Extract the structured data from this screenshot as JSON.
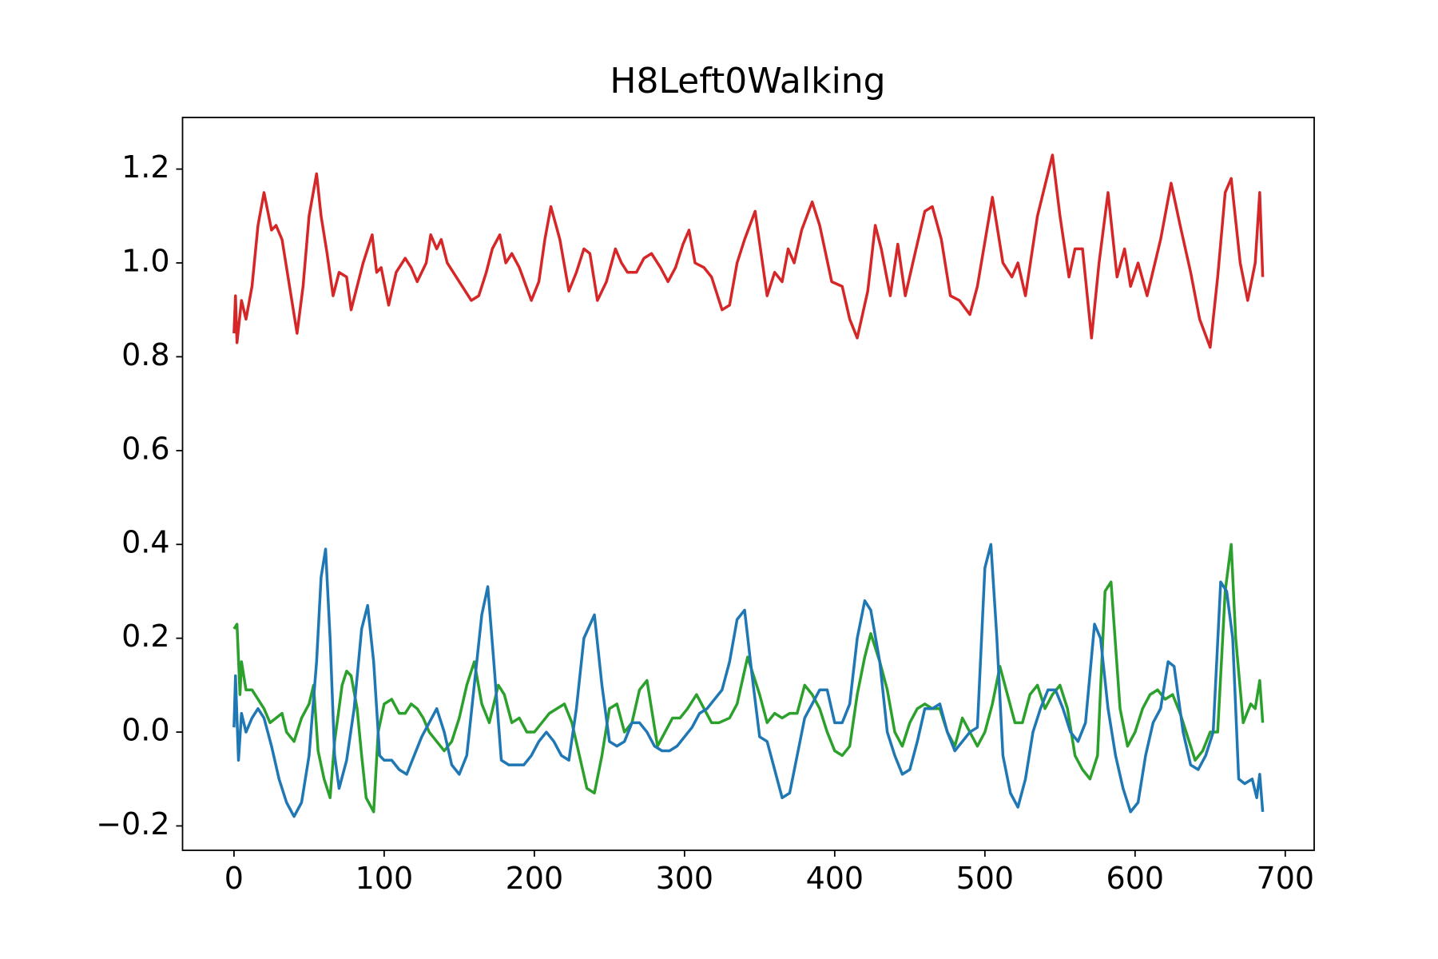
{
  "chart_data": {
    "type": "line",
    "title": "H8Left0Walking",
    "xlim": [
      -34.25,
      719.25
    ],
    "xticks": [
      0,
      100,
      200,
      300,
      400,
      500,
      600,
      700
    ],
    "ylim": [
      -0.252,
      1.31
    ],
    "yticks": [
      {
        "value": -0.2,
        "label": "−0.2"
      },
      {
        "value": 0,
        "label": "0.0"
      },
      0.2,
      0.4,
      0.6,
      0.8,
      {
        "value": 1,
        "label": "1.0"
      },
      1.2
    ],
    "series": [
      {
        "color": "#d62728",
        "x": [
          0,
          1,
          2,
          5,
          8,
          12,
          16,
          20,
          25,
          28,
          32,
          37,
          42,
          46,
          50,
          55,
          58,
          62,
          66,
          70,
          75,
          78,
          82,
          86,
          92,
          95,
          98,
          103,
          108,
          114,
          118,
          122,
          128,
          131,
          135,
          138,
          142,
          146,
          152,
          158,
          163,
          168,
          172,
          177,
          181,
          185,
          190,
          198,
          203,
          207,
          211,
          217,
          223,
          228,
          233,
          237,
          242,
          248,
          254,
          258,
          262,
          268,
          273,
          278,
          284,
          289,
          294,
          299,
          303,
          307,
          313,
          318,
          325,
          330,
          335,
          340,
          347,
          355,
          360,
          365,
          369,
          373,
          378,
          385,
          390,
          398,
          405,
          410,
          415,
          422,
          427,
          431,
          437,
          442,
          447,
          452,
          460,
          465,
          471,
          477,
          483,
          490,
          495,
          505,
          512,
          518,
          522,
          527,
          535,
          545,
          550,
          556,
          560,
          565,
          571,
          576,
          582,
          588,
          593,
          597,
          602,
          608,
          617,
          624,
          630,
          637,
          643,
          650,
          655,
          660,
          664,
          670,
          675,
          680,
          683,
          685
        ],
        "values": [
          0.85,
          0.93,
          0.83,
          0.92,
          0.88,
          0.95,
          1.08,
          1.15,
          1.07,
          1.08,
          1.05,
          0.95,
          0.85,
          0.95,
          1.1,
          1.19,
          1.1,
          1.02,
          0.93,
          0.98,
          0.97,
          0.9,
          0.95,
          1.0,
          1.06,
          0.98,
          0.99,
          0.91,
          0.98,
          1.01,
          0.99,
          0.96,
          1.0,
          1.06,
          1.03,
          1.05,
          1.0,
          0.98,
          0.95,
          0.92,
          0.93,
          0.98,
          1.03,
          1.06,
          1.0,
          1.02,
          0.99,
          0.92,
          0.96,
          1.05,
          1.12,
          1.05,
          0.94,
          0.98,
          1.03,
          1.02,
          0.92,
          0.96,
          1.03,
          1.0,
          0.98,
          0.98,
          1.01,
          1.02,
          0.99,
          0.96,
          0.99,
          1.04,
          1.07,
          1.0,
          0.99,
          0.97,
          0.9,
          0.91,
          1.0,
          1.05,
          1.11,
          0.93,
          0.98,
          0.96,
          1.03,
          1.0,
          1.07,
          1.13,
          1.08,
          0.96,
          0.95,
          0.88,
          0.84,
          0.94,
          1.08,
          1.03,
          0.93,
          1.04,
          0.93,
          1.0,
          1.11,
          1.12,
          1.05,
          0.93,
          0.92,
          0.89,
          0.95,
          1.14,
          1.0,
          0.97,
          1.0,
          0.93,
          1.1,
          1.23,
          1.1,
          0.97,
          1.03,
          1.03,
          0.84,
          1.0,
          1.15,
          0.97,
          1.03,
          0.95,
          1.0,
          0.93,
          1.05,
          1.17,
          1.08,
          0.98,
          0.88,
          0.82,
          0.97,
          1.15,
          1.18,
          1.0,
          0.92,
          1.0,
          1.15,
          0.97
        ]
      },
      {
        "color": "#2ca02c",
        "x": [
          0,
          2,
          4,
          5,
          8,
          12,
          16,
          20,
          24,
          28,
          32,
          35,
          40,
          45,
          50,
          53,
          56,
          60,
          64,
          67,
          72,
          75,
          78,
          82,
          85,
          88,
          93,
          96,
          100,
          105,
          110,
          114,
          118,
          122,
          126,
          130,
          135,
          140,
          145,
          150,
          155,
          160,
          165,
          170,
          176,
          180,
          185,
          190,
          195,
          200,
          205,
          210,
          215,
          220,
          225,
          230,
          235,
          240,
          245,
          250,
          255,
          260,
          265,
          270,
          275,
          278,
          282,
          287,
          292,
          297,
          302,
          308,
          313,
          318,
          323,
          330,
          335,
          342,
          346,
          350,
          355,
          360,
          365,
          370,
          375,
          380,
          385,
          390,
          395,
          400,
          405,
          410,
          415,
          420,
          424,
          430,
          435,
          440,
          445,
          450,
          455,
          460,
          465,
          470,
          475,
          480,
          485,
          490,
          495,
          500,
          505,
          510,
          515,
          520,
          525,
          530,
          535,
          540,
          545,
          550,
          555,
          560,
          565,
          570,
          575,
          580,
          584,
          590,
          595,
          600,
          605,
          610,
          615,
          620,
          625,
          630,
          635,
          640,
          645,
          650,
          655,
          660,
          664,
          667,
          672,
          677,
          680,
          683,
          685
        ],
        "values": [
          0.22,
          0.23,
          0.08,
          0.15,
          0.09,
          0.09,
          0.07,
          0.05,
          0.02,
          0.03,
          0.04,
          0.0,
          -0.02,
          0.03,
          0.06,
          0.1,
          -0.04,
          -0.1,
          -0.14,
          -0.02,
          0.1,
          0.13,
          0.12,
          0.05,
          -0.05,
          -0.14,
          -0.17,
          0.0,
          0.06,
          0.07,
          0.04,
          0.04,
          0.06,
          0.05,
          0.03,
          0.0,
          -0.02,
          -0.04,
          -0.02,
          0.03,
          0.1,
          0.15,
          0.06,
          0.02,
          0.1,
          0.08,
          0.02,
          0.03,
          0.0,
          0.0,
          0.02,
          0.04,
          0.05,
          0.06,
          0.02,
          -0.05,
          -0.12,
          -0.13,
          -0.05,
          0.05,
          0.06,
          0.0,
          0.02,
          0.09,
          0.11,
          0.05,
          -0.03,
          0.0,
          0.03,
          0.03,
          0.05,
          0.08,
          0.05,
          0.02,
          0.02,
          0.03,
          0.06,
          0.16,
          0.12,
          0.08,
          0.02,
          0.04,
          0.03,
          0.04,
          0.04,
          0.1,
          0.08,
          0.05,
          0.0,
          -0.04,
          -0.05,
          -0.03,
          0.08,
          0.16,
          0.21,
          0.15,
          0.09,
          0.0,
          -0.03,
          0.02,
          0.05,
          0.06,
          0.05,
          0.05,
          0.0,
          -0.03,
          0.03,
          0.0,
          -0.03,
          0.0,
          0.06,
          0.14,
          0.08,
          0.02,
          0.02,
          0.08,
          0.1,
          0.05,
          0.08,
          0.1,
          0.05,
          -0.05,
          -0.08,
          -0.1,
          -0.05,
          0.3,
          0.32,
          0.05,
          -0.03,
          0.0,
          0.05,
          0.08,
          0.09,
          0.07,
          0.08,
          0.04,
          -0.01,
          -0.06,
          -0.04,
          0.0,
          0.0,
          0.3,
          0.4,
          0.2,
          0.02,
          0.06,
          0.05,
          0.11,
          0.02
        ]
      },
      {
        "color": "#1f77b4",
        "x": [
          0,
          1,
          3,
          5,
          8,
          12,
          16,
          20,
          25,
          30,
          35,
          40,
          45,
          50,
          55,
          58,
          61,
          64,
          67,
          70,
          75,
          80,
          85,
          89,
          93,
          97,
          100,
          105,
          110,
          115,
          120,
          125,
          130,
          135,
          140,
          145,
          150,
          155,
          160,
          165,
          169,
          173,
          178,
          183,
          188,
          193,
          198,
          203,
          208,
          213,
          218,
          223,
          228,
          233,
          240,
          245,
          250,
          255,
          260,
          265,
          270,
          275,
          280,
          285,
          290,
          295,
          300,
          305,
          310,
          315,
          320,
          325,
          330,
          335,
          340,
          345,
          350,
          355,
          360,
          365,
          370,
          375,
          380,
          385,
          390,
          395,
          400,
          405,
          410,
          415,
          420,
          424,
          430,
          435,
          440,
          445,
          450,
          455,
          460,
          465,
          470,
          475,
          480,
          485,
          490,
          495,
          500,
          504,
          508,
          512,
          517,
          522,
          527,
          532,
          537,
          542,
          547,
          552,
          557,
          562,
          567,
          573,
          577,
          582,
          587,
          592,
          597,
          602,
          607,
          612,
          617,
          622,
          626,
          632,
          637,
          642,
          647,
          652,
          657,
          661,
          665,
          669,
          673,
          678,
          681,
          683,
          685
        ],
        "values": [
          0.01,
          0.12,
          -0.06,
          0.04,
          0.0,
          0.03,
          0.05,
          0.03,
          -0.03,
          -0.1,
          -0.15,
          -0.18,
          -0.15,
          -0.05,
          0.15,
          0.33,
          0.39,
          0.2,
          -0.05,
          -0.12,
          -0.06,
          0.05,
          0.22,
          0.27,
          0.15,
          -0.05,
          -0.06,
          -0.06,
          -0.08,
          -0.09,
          -0.05,
          -0.01,
          0.02,
          0.05,
          0.0,
          -0.07,
          -0.09,
          -0.05,
          0.1,
          0.25,
          0.31,
          0.15,
          -0.06,
          -0.07,
          -0.07,
          -0.07,
          -0.05,
          -0.02,
          0.0,
          -0.02,
          -0.05,
          -0.06,
          0.05,
          0.2,
          0.25,
          0.1,
          -0.02,
          -0.03,
          -0.02,
          0.02,
          0.02,
          0.0,
          -0.03,
          -0.04,
          -0.04,
          -0.03,
          -0.01,
          0.01,
          0.04,
          0.05,
          0.07,
          0.09,
          0.15,
          0.24,
          0.26,
          0.12,
          -0.01,
          -0.02,
          -0.08,
          -0.14,
          -0.13,
          -0.05,
          0.03,
          0.06,
          0.09,
          0.09,
          0.02,
          0.02,
          0.06,
          0.2,
          0.28,
          0.26,
          0.15,
          0.0,
          -0.05,
          -0.09,
          -0.08,
          -0.02,
          0.05,
          0.05,
          0.06,
          0.0,
          -0.04,
          -0.02,
          0.0,
          0.01,
          0.35,
          0.4,
          0.2,
          -0.05,
          -0.13,
          -0.16,
          -0.1,
          0.0,
          0.05,
          0.09,
          0.09,
          0.05,
          0.0,
          -0.02,
          0.02,
          0.23,
          0.2,
          0.05,
          -0.05,
          -0.12,
          -0.17,
          -0.15,
          -0.05,
          0.02,
          0.05,
          0.15,
          0.14,
          0.0,
          -0.07,
          -0.08,
          -0.05,
          0.0,
          0.32,
          0.3,
          0.2,
          -0.1,
          -0.11,
          -0.1,
          -0.14,
          -0.09,
          -0.17
        ]
      }
    ]
  }
}
